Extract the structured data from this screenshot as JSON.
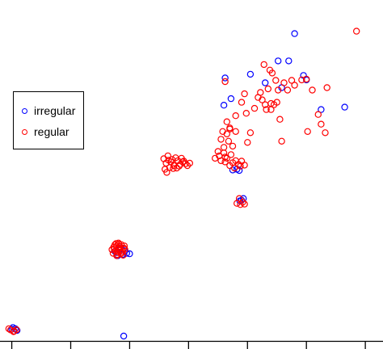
{
  "chart_data": {
    "type": "scatter",
    "title": "",
    "xlabel": "",
    "ylabel": "",
    "xlim": [
      -0.2,
      6.3
    ],
    "ylim": [
      0,
      14
    ],
    "grid": false,
    "legend_position": "upper-left",
    "series": [
      {
        "name": "irregular",
        "color": "#0000ff",
        "points": [
          [
            0.0,
            0.48
          ],
          [
            0.06,
            0.5
          ],
          [
            0.02,
            0.55
          ],
          [
            0.09,
            0.43
          ],
          [
            1.75,
            3.68
          ],
          [
            1.78,
            3.63
          ],
          [
            1.82,
            3.75
          ],
          [
            1.88,
            3.55
          ],
          [
            1.92,
            3.7
          ],
          [
            1.8,
            3.5
          ],
          [
            1.85,
            3.83
          ],
          [
            1.95,
            3.6
          ],
          [
            2.0,
            3.58
          ],
          [
            1.9,
            0.2
          ],
          [
            3.9,
            5.78
          ],
          [
            3.93,
            5.85
          ],
          [
            3.87,
            5.75
          ],
          [
            3.75,
            7.02
          ],
          [
            3.82,
            7.05
          ],
          [
            3.86,
            7.0
          ],
          [
            3.6,
            9.68
          ],
          [
            3.72,
            9.95
          ],
          [
            4.05,
            10.95
          ],
          [
            4.3,
            10.6
          ],
          [
            4.52,
            11.5
          ],
          [
            4.8,
            12.62
          ],
          [
            4.7,
            11.5
          ],
          [
            4.95,
            10.9
          ],
          [
            5.0,
            10.72
          ],
          [
            5.25,
            9.5
          ],
          [
            5.65,
            9.6
          ],
          [
            4.58,
            10.4
          ],
          [
            3.62,
            10.8
          ]
        ]
      },
      {
        "name": "regular",
        "color": "#ff0000",
        "points": [
          [
            -0.02,
            0.45
          ],
          [
            0.04,
            0.4
          ],
          [
            0.08,
            0.46
          ],
          [
            0.03,
            0.38
          ],
          [
            -0.05,
            0.5
          ],
          [
            1.7,
            3.75
          ],
          [
            1.73,
            3.85
          ],
          [
            1.76,
            3.7
          ],
          [
            1.78,
            3.9
          ],
          [
            1.8,
            3.65
          ],
          [
            1.82,
            3.8
          ],
          [
            1.84,
            3.72
          ],
          [
            1.86,
            3.95
          ],
          [
            1.88,
            3.68
          ],
          [
            1.9,
            3.82
          ],
          [
            1.72,
            3.6
          ],
          [
            1.75,
            3.95
          ],
          [
            1.79,
            3.55
          ],
          [
            1.83,
            3.88
          ],
          [
            1.87,
            3.62
          ],
          [
            1.91,
            3.9
          ],
          [
            1.77,
            4.0
          ],
          [
            1.81,
            4.02
          ],
          [
            1.85,
            3.58
          ],
          [
            1.74,
            3.78
          ],
          [
            1.92,
            3.76
          ],
          [
            1.89,
            3.52
          ],
          [
            1.78,
            3.5
          ],
          [
            1.82,
            3.97
          ],
          [
            2.58,
            7.48
          ],
          [
            2.62,
            7.3
          ],
          [
            2.65,
            7.6
          ],
          [
            2.7,
            7.35
          ],
          [
            2.75,
            7.2
          ],
          [
            2.78,
            7.52
          ],
          [
            2.8,
            7.1
          ],
          [
            2.82,
            7.4
          ],
          [
            2.86,
            7.25
          ],
          [
            2.9,
            7.35
          ],
          [
            2.95,
            7.28
          ],
          [
            2.98,
            7.2
          ],
          [
            3.02,
            7.3
          ],
          [
            2.6,
            7.05
          ],
          [
            2.63,
            6.92
          ],
          [
            2.68,
            7.12
          ],
          [
            2.72,
            7.45
          ],
          [
            2.88,
            7.5
          ],
          [
            2.84,
            7.18
          ],
          [
            2.66,
            7.42
          ],
          [
            2.74,
            7.08
          ],
          [
            2.92,
            7.38
          ],
          [
            3.45,
            7.5
          ],
          [
            3.5,
            7.78
          ],
          [
            3.55,
            7.4
          ],
          [
            3.6,
            7.72
          ],
          [
            3.62,
            7.35
          ],
          [
            3.65,
            7.5
          ],
          [
            3.7,
            7.2
          ],
          [
            3.75,
            7.32
          ],
          [
            3.8,
            7.4
          ],
          [
            3.85,
            7.25
          ],
          [
            3.9,
            7.38
          ],
          [
            3.95,
            7.22
          ],
          [
            3.55,
            8.28
          ],
          [
            3.6,
            7.95
          ],
          [
            3.65,
            8.5
          ],
          [
            3.7,
            8.7
          ],
          [
            3.75,
            8.0
          ],
          [
            3.8,
            8.6
          ],
          [
            3.58,
            8.6
          ],
          [
            3.68,
            8.2
          ],
          [
            3.72,
            7.65
          ],
          [
            3.52,
            7.6
          ],
          [
            3.62,
            7.55
          ],
          [
            3.78,
            7.1
          ],
          [
            3.88,
            7.18
          ],
          [
            3.82,
            5.65
          ],
          [
            3.88,
            5.6
          ],
          [
            3.92,
            5.7
          ],
          [
            3.86,
            5.85
          ],
          [
            3.95,
            5.62
          ],
          [
            3.62,
            10.65
          ],
          [
            3.65,
            9.0
          ],
          [
            3.7,
            8.75
          ],
          [
            3.8,
            9.25
          ],
          [
            3.9,
            9.8
          ],
          [
            3.95,
            10.15
          ],
          [
            3.98,
            9.35
          ],
          [
            4.05,
            8.55
          ],
          [
            4.12,
            9.55
          ],
          [
            4.22,
            10.2
          ],
          [
            4.25,
            9.9
          ],
          [
            4.3,
            9.7
          ],
          [
            4.32,
            9.5
          ],
          [
            4.38,
            11.12
          ],
          [
            4.42,
            11.0
          ],
          [
            4.45,
            9.7
          ],
          [
            4.4,
            9.75
          ],
          [
            4.48,
            10.7
          ],
          [
            4.5,
            9.8
          ],
          [
            4.52,
            10.3
          ],
          [
            4.55,
            9.1
          ],
          [
            4.58,
            8.2
          ],
          [
            4.4,
            9.5
          ],
          [
            4.35,
            10.35
          ],
          [
            4.62,
            10.6
          ],
          [
            4.68,
            10.3
          ],
          [
            4.75,
            10.7
          ],
          [
            4.8,
            10.5
          ],
          [
            4.92,
            10.72
          ],
          [
            5.0,
            10.75
          ],
          [
            5.1,
            10.3
          ],
          [
            5.2,
            9.3
          ],
          [
            5.25,
            8.9
          ],
          [
            5.02,
            8.6
          ],
          [
            5.85,
            12.72
          ],
          [
            5.32,
            8.55
          ],
          [
            5.35,
            10.4
          ],
          [
            4.0,
            8.15
          ],
          [
            4.18,
            10.0
          ],
          [
            4.28,
            11.35
          ]
        ]
      }
    ]
  }
}
